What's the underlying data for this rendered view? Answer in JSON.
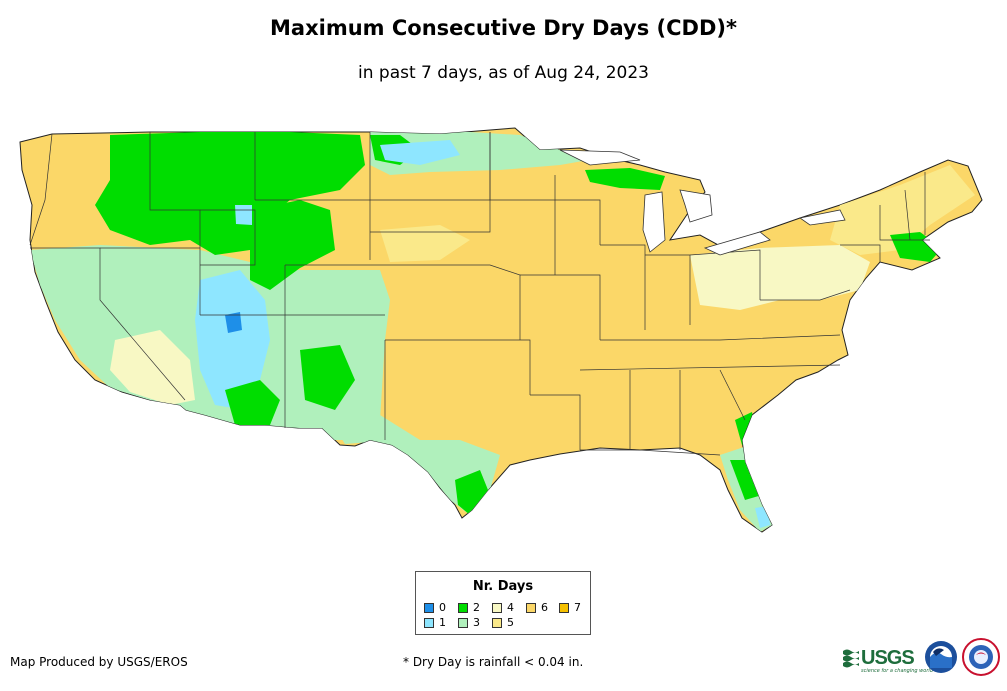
{
  "header": {
    "title": "Maximum Consecutive Dry Days (CDD)*",
    "subtitle": "in past 7 days, as of Aug 24, 2023"
  },
  "legend": {
    "title": "Nr. Days",
    "items": [
      {
        "label": "0",
        "color": "#1e8fe8"
      },
      {
        "label": "1",
        "color": "#8ee6ff"
      },
      {
        "label": "2",
        "color": "#00dd00"
      },
      {
        "label": "3",
        "color": "#b0f0bc"
      },
      {
        "label": "4",
        "color": "#f8f8c4"
      },
      {
        "label": "5",
        "color": "#fae98a"
      },
      {
        "label": "6",
        "color": "#fbd768"
      },
      {
        "label": "7",
        "color": "#f5c000"
      }
    ]
  },
  "footer": {
    "credit": "Map Produced by USGS/EROS",
    "note": "* Dry Day is rainfall < 0.04 in.",
    "usgs_logo_text": "USGS",
    "usgs_tagline": "science for a changing world"
  },
  "logos": [
    "usgs-logo",
    "noaa-logo",
    "nws-logo"
  ]
}
